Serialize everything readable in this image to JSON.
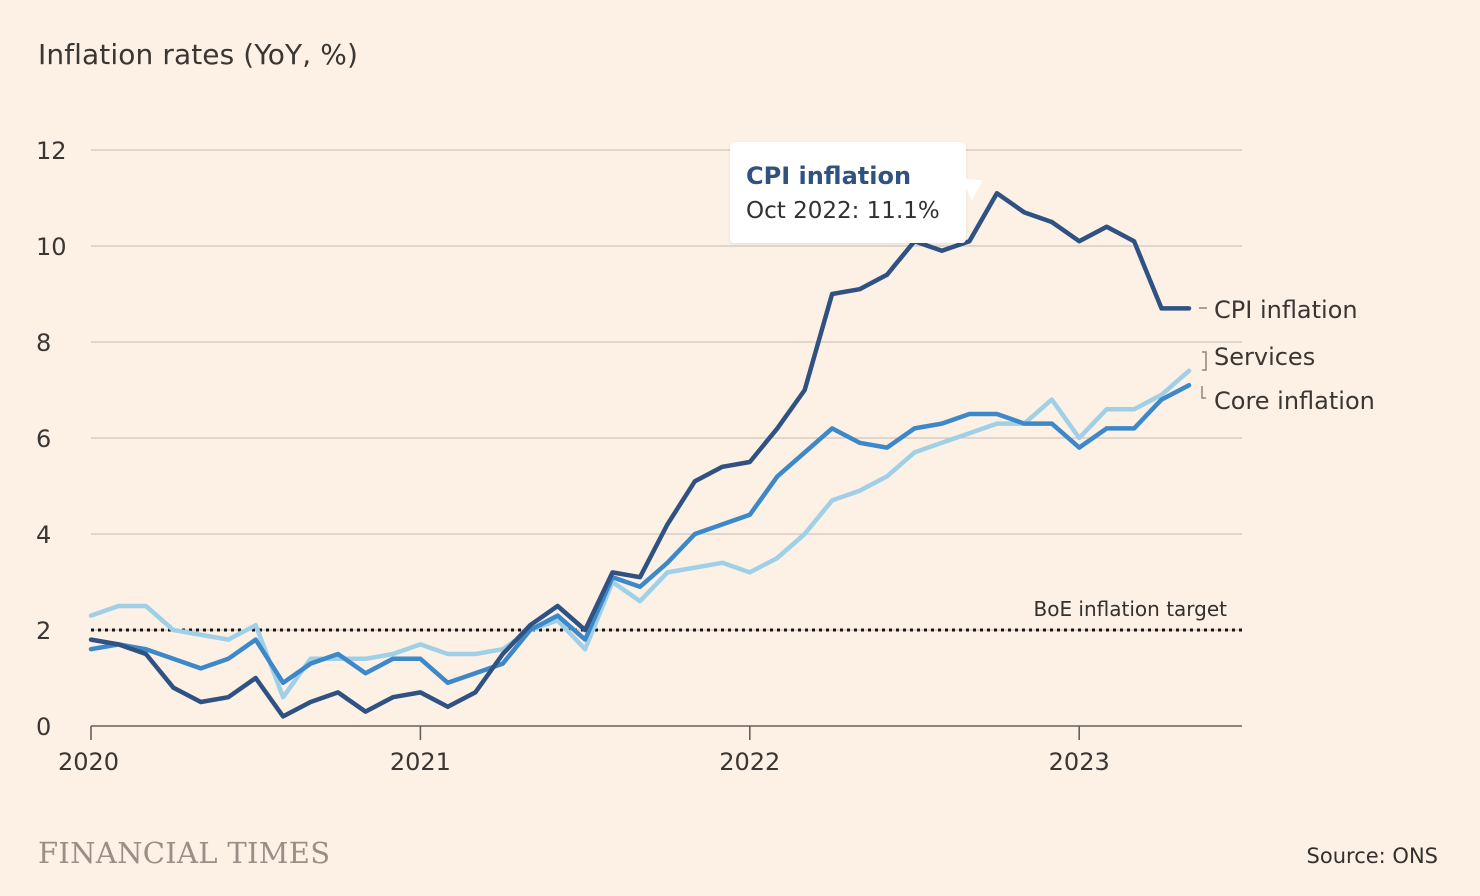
{
  "title": "Inflation rates (YoY, %)",
  "brand": "FINANCIAL TIMES",
  "source": "Source: ONS",
  "tooltip": {
    "series": "CPI inflation",
    "value": "Oct 2022: 11.1%"
  },
  "chart_data": {
    "type": "line",
    "title": "Inflation rates (YoY, %)",
    "xlabel": "",
    "ylabel": "",
    "ylim": [
      0,
      12
    ],
    "yticks": [
      0,
      2,
      4,
      6,
      8,
      10,
      12
    ],
    "xlim": [
      "2020-01",
      "2023-06"
    ],
    "xticks": [
      {
        "value": "2020-01",
        "label": "2020"
      },
      {
        "value": "2021-01",
        "label": "2021"
      },
      {
        "value": "2022-01",
        "label": "2022"
      },
      {
        "value": "2023-01",
        "label": "2023"
      }
    ],
    "grid": "horizontal",
    "reference_line": {
      "y": 2,
      "label": "BoE inflation target",
      "style": "dotted"
    },
    "x": [
      "2020-01",
      "2020-02",
      "2020-03",
      "2020-04",
      "2020-05",
      "2020-06",
      "2020-07",
      "2020-08",
      "2020-09",
      "2020-10",
      "2020-11",
      "2020-12",
      "2021-01",
      "2021-02",
      "2021-03",
      "2021-04",
      "2021-05",
      "2021-06",
      "2021-07",
      "2021-08",
      "2021-09",
      "2021-10",
      "2021-11",
      "2021-12",
      "2022-01",
      "2022-02",
      "2022-03",
      "2022-04",
      "2022-05",
      "2022-06",
      "2022-07",
      "2022-08",
      "2022-09",
      "2022-10",
      "2022-11",
      "2022-12",
      "2023-01",
      "2023-02",
      "2023-03",
      "2023-04",
      "2023-05"
    ],
    "series": [
      {
        "name": "Services",
        "color": "#9fd0e8",
        "values": [
          2.3,
          2.5,
          2.5,
          2.0,
          1.9,
          1.8,
          2.1,
          0.6,
          1.4,
          1.4,
          1.4,
          1.5,
          1.7,
          1.5,
          1.5,
          1.6,
          2.0,
          2.2,
          1.6,
          3.0,
          2.6,
          3.2,
          3.3,
          3.4,
          3.2,
          3.5,
          4.0,
          4.7,
          4.9,
          5.2,
          5.7,
          5.9,
          6.1,
          6.3,
          6.3,
          6.8,
          6.0,
          6.6,
          6.6,
          6.9,
          7.4
        ]
      },
      {
        "name": "Core inflation",
        "color": "#3d88c9",
        "values": [
          1.6,
          1.7,
          1.6,
          1.4,
          1.2,
          1.4,
          1.8,
          0.9,
          1.3,
          1.5,
          1.1,
          1.4,
          1.4,
          0.9,
          1.1,
          1.3,
          2.0,
          2.3,
          1.8,
          3.1,
          2.9,
          3.4,
          4.0,
          4.2,
          4.4,
          5.2,
          5.7,
          6.2,
          5.9,
          5.8,
          6.2,
          6.3,
          6.5,
          6.5,
          6.3,
          6.3,
          5.8,
          6.2,
          6.2,
          6.8,
          7.1
        ]
      },
      {
        "name": "CPI inflation",
        "color": "#2f5283",
        "values": [
          1.8,
          1.7,
          1.5,
          0.8,
          0.5,
          0.6,
          1.0,
          0.2,
          0.5,
          0.7,
          0.3,
          0.6,
          0.7,
          0.4,
          0.7,
          1.5,
          2.1,
          2.5,
          2.0,
          3.2,
          3.1,
          4.2,
          5.1,
          5.4,
          5.5,
          6.2,
          7.0,
          9.0,
          9.1,
          9.4,
          10.1,
          9.9,
          10.1,
          11.1,
          10.7,
          10.5,
          10.1,
          10.4,
          10.1,
          8.7,
          8.7
        ]
      }
    ],
    "end_labels": [
      {
        "series": "CPI inflation",
        "text": "CPI inflation"
      },
      {
        "series": "Services",
        "text": "Services"
      },
      {
        "series": "Core inflation",
        "text": "Core inflation"
      }
    ]
  }
}
